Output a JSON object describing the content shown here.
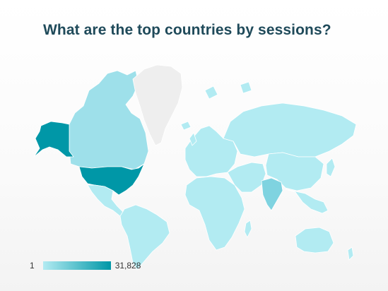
{
  "title": "What are the top countries by sessions?",
  "metric": "sessions",
  "legend": {
    "min_label": "1",
    "max_label": "31,828",
    "min_color": "#b2ebf2",
    "max_color": "#0097a7"
  },
  "colors": {
    "no_data": "#eeeeee",
    "low": "#b2ebf2",
    "mid_low": "#9ee0ea",
    "mid": "#7fd3e0",
    "high": "#0097a7",
    "border": "#ffffff"
  },
  "regions": [
    {
      "name": "United States",
      "level": "high"
    },
    {
      "name": "Alaska",
      "level": "high"
    },
    {
      "name": "Canada",
      "level": "mid_low"
    },
    {
      "name": "Greenland",
      "level": "no_data"
    },
    {
      "name": "Mexico",
      "level": "low"
    },
    {
      "name": "South America",
      "level": "low"
    },
    {
      "name": "Europe",
      "level": "low"
    },
    {
      "name": "Russia",
      "level": "low"
    },
    {
      "name": "Africa",
      "level": "low"
    },
    {
      "name": "Middle East",
      "level": "low"
    },
    {
      "name": "India",
      "level": "mid"
    },
    {
      "name": "China",
      "level": "low"
    },
    {
      "name": "Southeast Asia",
      "level": "low"
    },
    {
      "name": "Australia",
      "level": "low"
    }
  ]
}
